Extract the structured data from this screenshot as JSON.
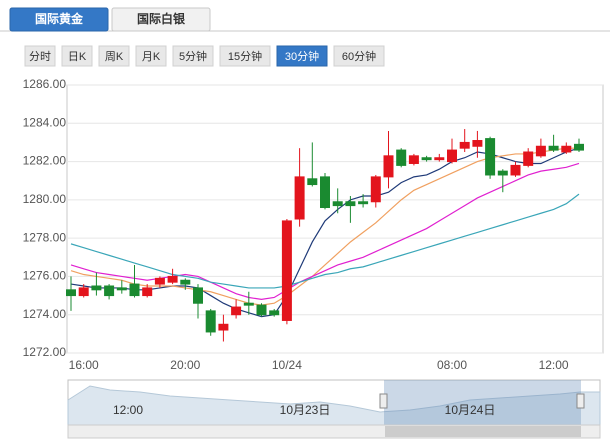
{
  "tabs": [
    "国际黄金",
    "国际白银"
  ],
  "periods": [
    "分时",
    "日K",
    "周K",
    "月K",
    "5分钟",
    "15分钟",
    "30分钟",
    "60分钟"
  ],
  "active_period": 6,
  "navigator": {
    "labels": [
      "12:00",
      "10月23日",
      "10月24日"
    ]
  },
  "chart_data": {
    "type": "candlestick",
    "categories": [
      null,
      "16:00",
      null,
      null,
      null,
      null,
      null,
      null,
      null,
      "20:00",
      null,
      null,
      null,
      null,
      null,
      null,
      null,
      "10/24",
      null,
      null,
      null,
      null,
      null,
      null,
      null,
      null,
      null,
      null,
      null,
      null,
      "08:00",
      null,
      null,
      null,
      null,
      null,
      null,
      null,
      "12:00",
      null,
      null
    ],
    "open": [
      1275.3,
      1275.0,
      1275.5,
      1275.5,
      1275.4,
      1275.6,
      1275.0,
      1275.6,
      1275.7,
      1275.8,
      1275.4,
      1274.2,
      1273.2,
      1274.0,
      1274.6,
      1274.5,
      1274.2,
      1273.7,
      1279.0,
      1281.1,
      1281.2,
      1279.9,
      1279.9,
      1279.9,
      1279.9,
      1281.2,
      1282.6,
      1281.9,
      1282.2,
      1282.1,
      1282.0,
      1282.7,
      1282.8,
      1283.2,
      1281.5,
      1281.3,
      1281.8,
      1282.3,
      1282.8,
      1282.5,
      1282.9
    ],
    "high": [
      1276.0,
      1275.6,
      1276.2,
      1275.6,
      1275.8,
      1276.6,
      1275.6,
      1276.0,
      1276.4,
      1275.9,
      1275.6,
      1274.3,
      1274.0,
      1274.8,
      1275.2,
      1274.6,
      1274.3,
      1279.0,
      1282.7,
      1283.0,
      1281.4,
      1280.6,
      1280.2,
      1280.3,
      1281.3,
      1283.6,
      1282.7,
      1282.4,
      1282.3,
      1282.4,
      1283.2,
      1283.7,
      1283.6,
      1283.3,
      1281.6,
      1282.0,
      1282.7,
      1283.2,
      1283.4,
      1283.0,
      1283.2
    ],
    "low": [
      1274.2,
      1274.9,
      1275.0,
      1274.8,
      1275.1,
      1274.9,
      1274.9,
      1275.4,
      1275.6,
      1275.3,
      1273.8,
      1272.9,
      1272.6,
      1273.8,
      1274.0,
      1273.9,
      1273.9,
      1273.5,
      1278.6,
      1280.7,
      1279.5,
      1279.3,
      1278.8,
      1279.6,
      1279.6,
      1280.6,
      1281.7,
      1281.8,
      1282.0,
      1282.0,
      1281.9,
      1282.5,
      1282.2,
      1281.1,
      1280.4,
      1281.2,
      1281.7,
      1282.2,
      1282.5,
      1282.4,
      1282.5
    ],
    "close": [
      1275.0,
      1275.4,
      1275.3,
      1275.0,
      1275.3,
      1275.0,
      1275.4,
      1275.9,
      1276.0,
      1275.6,
      1274.6,
      1273.1,
      1273.5,
      1274.4,
      1274.5,
      1274.0,
      1274.0,
      1278.9,
      1281.2,
      1280.8,
      1279.6,
      1279.7,
      1279.7,
      1279.8,
      1281.2,
      1282.3,
      1281.8,
      1282.3,
      1282.1,
      1282.2,
      1282.6,
      1283.0,
      1283.1,
      1281.3,
      1281.3,
      1281.8,
      1282.5,
      1282.8,
      1282.6,
      1282.8,
      1282.6
    ],
    "up_color": "#e3141d",
    "down_color": "#1a8a30",
    "series": [
      {
        "color": "#1f3a78",
        "values": [
          1275.6,
          1275.5,
          1275.4,
          1275.4,
          1275.4,
          1275.3,
          1275.3,
          1275.4,
          1275.5,
          1275.5,
          1275.4,
          1275.0,
          1274.6,
          1274.3,
          1274.1,
          1273.9,
          1274.0,
          1275.0,
          1276.4,
          1277.8,
          1278.9,
          1279.5,
          1280.0,
          1280.2,
          1280.2,
          1280.4,
          1280.9,
          1281.2,
          1281.3,
          1281.6,
          1282.0,
          1282.2,
          1282.5,
          1282.4,
          1282.2,
          1282.0,
          1281.9,
          1281.9,
          1282.2,
          1282.5,
          1282.7
        ]
      },
      {
        "color": "#f0a060",
        "values": [
          1276.3,
          1276.1,
          1276.0,
          1275.9,
          1275.8,
          1275.6,
          1275.5,
          1275.5,
          1275.5,
          1275.4,
          1275.3,
          1275.2,
          1275.0,
          1274.8,
          1274.6,
          1274.5,
          1274.6,
          1275.0,
          1275.5,
          1276.0,
          1276.6,
          1277.2,
          1277.8,
          1278.3,
          1278.8,
          1279.4,
          1280.0,
          1280.5,
          1280.8,
          1281.1,
          1281.4,
          1281.7,
          1282.0,
          1282.2,
          1282.3,
          1282.4,
          1282.4,
          1282.5,
          1282.6,
          1282.7,
          1282.7
        ]
      },
      {
        "color": "#e020d0",
        "values": [
          1276.6,
          1276.4,
          1276.2,
          1276.1,
          1276.0,
          1275.9,
          1275.8,
          1275.9,
          1276.0,
          1276.1,
          1276.0,
          1275.7,
          1275.4,
          1275.1,
          1274.9,
          1274.8,
          1274.9,
          1275.3,
          1275.7,
          1276.0,
          1276.3,
          1276.6,
          1276.8,
          1277.0,
          1277.3,
          1277.6,
          1277.9,
          1278.2,
          1278.5,
          1278.9,
          1279.3,
          1279.7,
          1280.1,
          1280.4,
          1280.7,
          1281.0,
          1281.3,
          1281.5,
          1281.6,
          1281.7,
          1281.9
        ]
      },
      {
        "color": "#3aa6b8",
        "values": [
          1277.7,
          1277.5,
          1277.3,
          1277.1,
          1276.9,
          1276.7,
          1276.5,
          1276.3,
          1276.1,
          1276.0,
          1275.9,
          1275.7,
          1275.6,
          1275.5,
          1275.4,
          1275.4,
          1275.4,
          1275.5,
          1275.7,
          1275.9,
          1276.1,
          1276.2,
          1276.4,
          1276.5,
          1276.7,
          1276.9,
          1277.1,
          1277.3,
          1277.5,
          1277.7,
          1277.9,
          1278.1,
          1278.3,
          1278.5,
          1278.7,
          1278.9,
          1279.1,
          1279.3,
          1279.5,
          1279.8,
          1280.3
        ]
      }
    ],
    "ylim": [
      1272,
      1286
    ],
    "yticks": [
      {
        "value": 1272,
        "label": "1272.00"
      },
      {
        "value": 1274,
        "label": "1274.00"
      },
      {
        "value": 1276,
        "label": "1276.00"
      },
      {
        "value": 1278,
        "label": "1278.00"
      },
      {
        "value": 1280,
        "label": "1280.00"
      },
      {
        "value": 1282,
        "label": "1282.00"
      },
      {
        "value": 1284,
        "label": "1284.00"
      },
      {
        "value": 1286,
        "label": "1286.00"
      }
    ],
    "grid": true
  }
}
